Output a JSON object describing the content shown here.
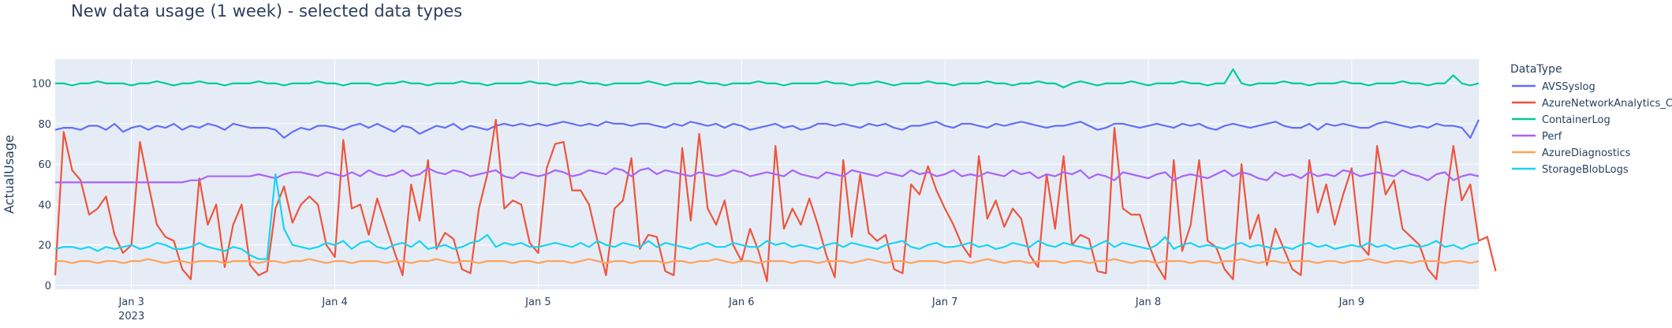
{
  "chart_data": {
    "type": "line",
    "title": "New data usage (1 week) - selected data types",
    "xlabel": "",
    "ylabel": "ActualUsage",
    "legend_title": "DataType",
    "legend_position": "right",
    "grid": true,
    "ylim": [
      -2,
      112
    ],
    "yticks": [
      0,
      20,
      40,
      60,
      80,
      100
    ],
    "x_start_hours": 39,
    "x_step_hours": 1,
    "x_end_hours": 207,
    "xticks": [
      {
        "hours": 48,
        "label": "Jan 3",
        "sublabel": "2023"
      },
      {
        "hours": 72,
        "label": "Jan 4"
      },
      {
        "hours": 96,
        "label": "Jan 5"
      },
      {
        "hours": 120,
        "label": "Jan 6"
      },
      {
        "hours": 144,
        "label": "Jan 7"
      },
      {
        "hours": 168,
        "label": "Jan 8"
      },
      {
        "hours": 192,
        "label": "Jan 9"
      }
    ],
    "series": [
      {
        "name": "AVSSyslog",
        "color": "#636efa",
        "values": [
          77,
          78,
          78,
          77,
          79,
          79,
          77,
          80,
          76,
          78,
          79,
          77,
          79,
          78,
          80,
          77,
          79,
          78,
          80,
          79,
          77,
          80,
          79,
          78,
          78,
          78,
          77,
          73,
          76,
          78,
          77,
          79,
          79,
          78,
          77,
          79,
          80,
          78,
          80,
          78,
          76,
          79,
          78,
          75,
          77,
          79,
          78,
          80,
          77,
          79,
          78,
          77,
          79,
          80,
          79,
          80,
          79,
          80,
          79,
          80,
          81,
          80,
          79,
          80,
          79,
          81,
          80,
          80,
          79,
          80,
          80,
          79,
          78,
          80,
          79,
          81,
          80,
          79,
          80,
          78,
          80,
          79,
          77,
          78,
          79,
          80,
          78,
          79,
          77,
          78,
          80,
          80,
          79,
          80,
          79,
          78,
          80,
          79,
          80,
          78,
          77,
          79,
          79,
          80,
          81,
          79,
          78,
          80,
          80,
          79,
          78,
          80,
          79,
          80,
          81,
          80,
          79,
          78,
          79,
          79,
          80,
          81,
          79,
          77,
          78,
          80,
          80,
          79,
          78,
          79,
          80,
          79,
          78,
          80,
          79,
          80,
          78,
          77,
          79,
          80,
          79,
          78,
          79,
          80,
          81,
          79,
          78,
          78,
          80,
          77,
          80,
          79,
          80,
          79,
          78,
          78,
          80,
          81,
          80,
          79,
          78,
          79,
          78,
          80,
          79,
          79,
          78,
          73,
          82
        ]
      },
      {
        "name": "AzureNetworkAnalytics_CL",
        "color": "#ef553b",
        "values": [
          5,
          76,
          57,
          52,
          35,
          38,
          44,
          25,
          16,
          20,
          71,
          50,
          30,
          24,
          22,
          8,
          3,
          53,
          30,
          40,
          9,
          30,
          40,
          10,
          5,
          7,
          38,
          49,
          31,
          40,
          44,
          40,
          20,
          14,
          72,
          38,
          40,
          25,
          43,
          30,
          17,
          5,
          50,
          32,
          62,
          18,
          26,
          23,
          8,
          6,
          38,
          55,
          82,
          38,
          42,
          40,
          21,
          16,
          58,
          70,
          71,
          47,
          47,
          40,
          22,
          5,
          38,
          42,
          63,
          18,
          25,
          24,
          7,
          5,
          68,
          32,
          75,
          38,
          30,
          42,
          20,
          12,
          28,
          17,
          2,
          69,
          28,
          38,
          30,
          43,
          30,
          15,
          4,
          62,
          24,
          55,
          26,
          22,
          25,
          8,
          6,
          50,
          45,
          59,
          47,
          38,
          30,
          20,
          14,
          64,
          33,
          42,
          29,
          38,
          33,
          15,
          9,
          55,
          28,
          64,
          20,
          25,
          23,
          7,
          6,
          78,
          38,
          35,
          35,
          21,
          10,
          3,
          62,
          17,
          30,
          62,
          22,
          19,
          8,
          3,
          60,
          23,
          35,
          10,
          28,
          18,
          8,
          5,
          62,
          36,
          50,
          30,
          45,
          58,
          20,
          15,
          69,
          45,
          52,
          28,
          24,
          20,
          8,
          3,
          38,
          69,
          42,
          50,
          22,
          24,
          7
        ]
      },
      {
        "name": "ContainerLog",
        "color": "#00cc96",
        "values": [
          100,
          100,
          99,
          100,
          100,
          101,
          100,
          100,
          100,
          99,
          100,
          100,
          101,
          100,
          99,
          100,
          100,
          101,
          100,
          100,
          99,
          100,
          100,
          100,
          101,
          100,
          100,
          99,
          100,
          100,
          100,
          101,
          100,
          100,
          99,
          100,
          100,
          100,
          99,
          100,
          100,
          101,
          100,
          100,
          99,
          100,
          100,
          100,
          101,
          100,
          100,
          99,
          100,
          100,
          100,
          100,
          101,
          100,
          100,
          99,
          100,
          100,
          101,
          100,
          100,
          99,
          100,
          100,
          100,
          100,
          101,
          100,
          99,
          100,
          100,
          100,
          101,
          100,
          100,
          99,
          100,
          100,
          100,
          101,
          100,
          100,
          99,
          100,
          100,
          100,
          100,
          101,
          100,
          100,
          99,
          100,
          100,
          101,
          100,
          99,
          100,
          100,
          100,
          101,
          100,
          100,
          99,
          100,
          100,
          100,
          101,
          100,
          100,
          99,
          100,
          100,
          101,
          100,
          100,
          98,
          100,
          101,
          100,
          99,
          100,
          100,
          100,
          101,
          100,
          99,
          100,
          100,
          100,
          101,
          100,
          100,
          99,
          100,
          100,
          107,
          100,
          99,
          100,
          100,
          100,
          101,
          100,
          100,
          99,
          100,
          100,
          100,
          101,
          100,
          100,
          99,
          100,
          100,
          100,
          101,
          100,
          100,
          99,
          100,
          100,
          104,
          100,
          99,
          100
        ]
      },
      {
        "name": "Perf",
        "color": "#ab63fa",
        "values": [
          51,
          51,
          51,
          51,
          51,
          51,
          51,
          51,
          51,
          51,
          51,
          51,
          51,
          51,
          51,
          51,
          52,
          52,
          54,
          54,
          54,
          54,
          54,
          54,
          55,
          54,
          53,
          55,
          56,
          56,
          55,
          54,
          56,
          55,
          54,
          56,
          54,
          57,
          55,
          54,
          55,
          57,
          54,
          55,
          58,
          56,
          55,
          57,
          56,
          54,
          55,
          56,
          57,
          54,
          53,
          56,
          55,
          54,
          55,
          57,
          56,
          54,
          55,
          57,
          56,
          55,
          58,
          57,
          54,
          57,
          58,
          55,
          57,
          56,
          55,
          54,
          56,
          55,
          54,
          55,
          57,
          56,
          54,
          55,
          56,
          55,
          54,
          57,
          55,
          54,
          53,
          56,
          55,
          54,
          57,
          56,
          55,
          54,
          56,
          55,
          54,
          57,
          55,
          56,
          54,
          55,
          57,
          54,
          55,
          54,
          56,
          55,
          54,
          57,
          55,
          56,
          53,
          55,
          54,
          56,
          55,
          57,
          53,
          55,
          54,
          52,
          56,
          55,
          54,
          53,
          55,
          56,
          52,
          54,
          55,
          54,
          53,
          55,
          57,
          54,
          56,
          55,
          53,
          52,
          56,
          54,
          55,
          53,
          56,
          54,
          55,
          54,
          57,
          56,
          54,
          55,
          56,
          55,
          54,
          57,
          55,
          54,
          52,
          55,
          56,
          52,
          54,
          55,
          54
        ]
      },
      {
        "name": "AzureDiagnostics",
        "color": "#ffa15a",
        "values": [
          12,
          12,
          11,
          12,
          12,
          11,
          12,
          12,
          11,
          12,
          12,
          13,
          12,
          11,
          12,
          12,
          11,
          12,
          12,
          12,
          11,
          12,
          12,
          12,
          11,
          12,
          12,
          11,
          12,
          12,
          13,
          12,
          11,
          12,
          12,
          11,
          12,
          12,
          12,
          11,
          12,
          12,
          11,
          12,
          12,
          13,
          12,
          11,
          12,
          12,
          11,
          12,
          12,
          12,
          11,
          12,
          12,
          11,
          12,
          12,
          12,
          11,
          12,
          13,
          12,
          11,
          12,
          12,
          11,
          12,
          12,
          12,
          11,
          12,
          12,
          11,
          12,
          12,
          13,
          12,
          11,
          12,
          12,
          11,
          12,
          12,
          12,
          11,
          12,
          12,
          11,
          12,
          12,
          12,
          11,
          12,
          13,
          12,
          11,
          12,
          12,
          11,
          12,
          12,
          12,
          11,
          12,
          12,
          11,
          12,
          13,
          12,
          11,
          12,
          12,
          11,
          12,
          12,
          12,
          11,
          12,
          12,
          11,
          12,
          12,
          13,
          12,
          11,
          12,
          12,
          11,
          12,
          12,
          12,
          11,
          12,
          12,
          11,
          12,
          12,
          13,
          12,
          11,
          12,
          12,
          11,
          12,
          12,
          12,
          11,
          12,
          12,
          11,
          12,
          12,
          13,
          12,
          11,
          12,
          12,
          11,
          12,
          12,
          12,
          11,
          12,
          12,
          11,
          12
        ]
      },
      {
        "name": "StorageBlobLogs",
        "color": "#19d3f3",
        "values": [
          18,
          19,
          19,
          18,
          19,
          17,
          19,
          18,
          19,
          20,
          18,
          19,
          21,
          20,
          18,
          18,
          19,
          21,
          19,
          18,
          17,
          19,
          18,
          15,
          13,
          13,
          55,
          28,
          20,
          19,
          18,
          19,
          21,
          20,
          22,
          18,
          21,
          22,
          19,
          18,
          20,
          21,
          19,
          22,
          18,
          19,
          20,
          18,
          19,
          21,
          22,
          25,
          19,
          21,
          20,
          21,
          19,
          19,
          20,
          21,
          20,
          19,
          21,
          19,
          22,
          20,
          19,
          21,
          20,
          19,
          22,
          19,
          21,
          20,
          19,
          18,
          20,
          21,
          19,
          19,
          21,
          20,
          19,
          19,
          22,
          20,
          21,
          19,
          20,
          19,
          18,
          20,
          21,
          19,
          21,
          20,
          19,
          18,
          20,
          21,
          22,
          19,
          18,
          20,
          21,
          19,
          19,
          20,
          21,
          19,
          20,
          18,
          19,
          21,
          20,
          19,
          22,
          20,
          19,
          21,
          20,
          19,
          18,
          20,
          22,
          19,
          21,
          20,
          19,
          18,
          20,
          24,
          18,
          20,
          21,
          19,
          20,
          19,
          18,
          20,
          21,
          19,
          20,
          19,
          18,
          19,
          18,
          20,
          21,
          19,
          20,
          18,
          19,
          20,
          19,
          21,
          19,
          20,
          18,
          19,
          20,
          19,
          20,
          22,
          19,
          20,
          18,
          20,
          21
        ]
      }
    ]
  }
}
